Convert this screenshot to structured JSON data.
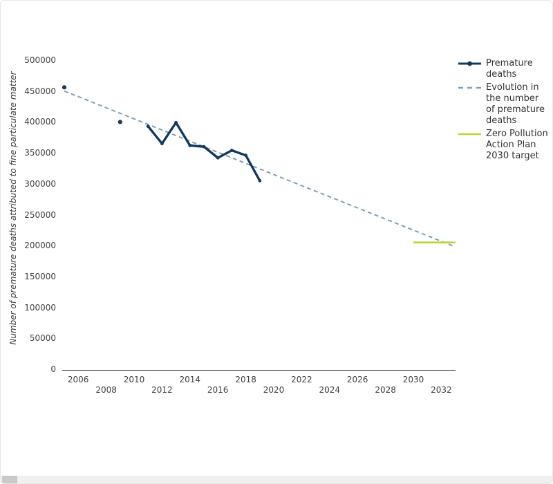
{
  "chart_data": {
    "type": "line",
    "title": "",
    "xlabel": "",
    "ylabel": "Number of premature deaths attributed to fine particulate matter",
    "ylim": [
      0,
      500000
    ],
    "xlim": [
      2005,
      2033
    ],
    "yticks": [
      0,
      50000,
      100000,
      150000,
      200000,
      250000,
      300000,
      350000,
      400000,
      450000,
      500000
    ],
    "xticks": [
      2006,
      2008,
      2010,
      2012,
      2014,
      2016,
      2018,
      2020,
      2022,
      2024,
      2026,
      2028,
      2030,
      2032
    ],
    "grid": false,
    "legend_position": "right",
    "series": [
      {
        "name": "Premature deaths",
        "style": "solid-with-markers",
        "color": "#14395e",
        "isolated_points": [
          [
            2005,
            456000
          ],
          [
            2009,
            400000
          ]
        ],
        "points": [
          [
            2011,
            393000
          ],
          [
            2012,
            365000
          ],
          [
            2013,
            399000
          ],
          [
            2014,
            362000
          ],
          [
            2015,
            360000
          ],
          [
            2016,
            342000
          ],
          [
            2017,
            354000
          ],
          [
            2018,
            346000
          ],
          [
            2019,
            305000
          ]
        ]
      },
      {
        "name": "Evolution in the number of premature deaths",
        "style": "dashed",
        "color": "#7f9db8",
        "points": [
          [
            2005,
            450000
          ],
          [
            2033,
            198000
          ]
        ]
      },
      {
        "name": "Zero Pollution Action Plan 2030 target",
        "style": "solid",
        "color": "#bdd335",
        "points": [
          [
            2030,
            205000
          ],
          [
            2033,
            205000
          ]
        ]
      }
    ]
  },
  "legend": {
    "items": [
      {
        "label": "Premature deaths",
        "swatch": "line-marker",
        "color": "#14395e"
      },
      {
        "label": "Evolution in the number of premature deaths",
        "swatch": "dashed-line",
        "color": "#7f9db8"
      },
      {
        "label": "Zero Pollution Action Plan 2030 target",
        "swatch": "line",
        "color": "#bdd335"
      }
    ]
  }
}
